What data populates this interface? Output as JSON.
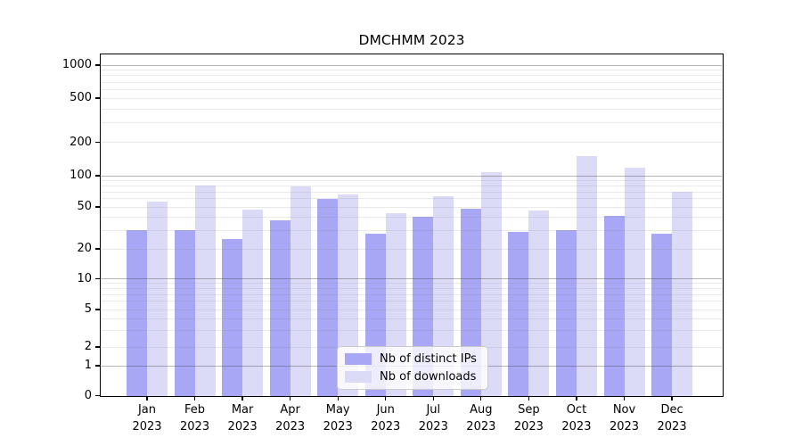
{
  "chart_data": {
    "type": "bar",
    "title": "DMCHMM 2023",
    "categories": [
      "Jan",
      "Feb",
      "Mar",
      "Apr",
      "May",
      "Jun",
      "Jul",
      "Aug",
      "Sep",
      "Oct",
      "Nov",
      "Dec"
    ],
    "year_label": "2023",
    "series": [
      {
        "name": "Nb of distinct IPs",
        "color": "#a7a7f6",
        "values": [
          30,
          30,
          25,
          37,
          60,
          28,
          40,
          48,
          29,
          30,
          41,
          28
        ]
      },
      {
        "name": "Nb of downloads",
        "color": "#dbdbf8",
        "values": [
          56,
          80,
          47,
          79,
          66,
          44,
          63,
          108,
          46,
          150,
          118,
          70
        ]
      }
    ],
    "yscale": "asinh",
    "ylim": [
      0,
      1130
    ],
    "yticks": [
      0,
      1,
      2,
      5,
      10,
      20,
      50,
      100,
      200,
      500,
      1000
    ],
    "grid": true,
    "legend_position": "lower center"
  }
}
